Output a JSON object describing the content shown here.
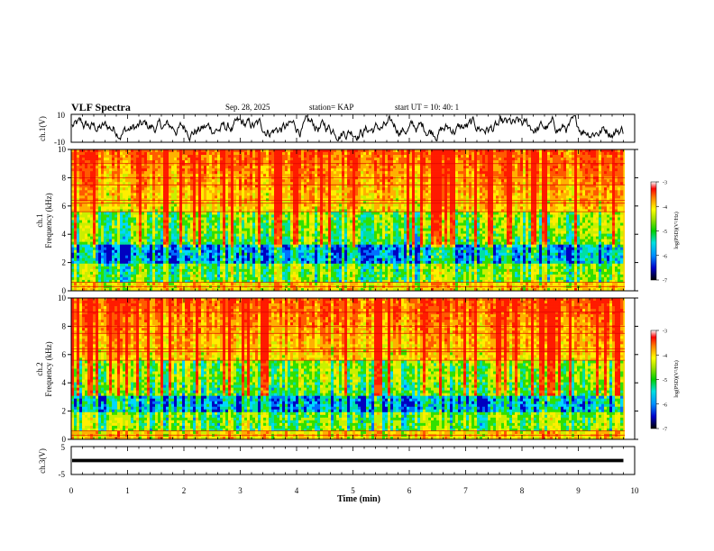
{
  "header": {
    "title": "VLF Spectra",
    "date": "Sep. 28, 2025",
    "station": "station= KAP",
    "start_ut": "start  UT =   10: 40: 1"
  },
  "chart_data": [
    {
      "type": "line",
      "name": "ch1-waveform",
      "ylabel": "ch.1(V)",
      "ylim": [
        -10,
        10
      ],
      "yticks": [
        "10",
        "-10"
      ],
      "x_range_min": [
        0,
        9.8
      ],
      "description_values": "noisy waveform fluctuating roughly between -9 and +9 V"
    },
    {
      "type": "heatmap",
      "name": "ch1-spectrogram",
      "ylabel": "ch.1\nFrequency (kHz)",
      "ylim": [
        0,
        10
      ],
      "yticks": [
        "0",
        "2",
        "4",
        "6",
        "8",
        "10"
      ],
      "colorbar": {
        "label": "log(PSD)(V²/Hz)",
        "range": [
          -7,
          -3
        ],
        "ticks": [
          "-3",
          "-4",
          "-5",
          "-6",
          "-7"
        ]
      }
    },
    {
      "type": "heatmap",
      "name": "ch2-spectrogram",
      "ylabel": "ch.2\nFrequency (kHz)",
      "ylim": [
        0,
        10
      ],
      "yticks": [
        "0",
        "2",
        "4",
        "6",
        "8",
        "10"
      ],
      "colorbar": {
        "label": "log(PSD)(V²/Hz)",
        "range": [
          -7,
          -3
        ],
        "ticks": [
          "-3",
          "-4",
          "-5",
          "-6",
          "-7"
        ]
      }
    },
    {
      "type": "line",
      "name": "ch3-waveform",
      "ylabel": "ch.3(V)",
      "ylim": [
        -5,
        5
      ],
      "yticks": [
        "5",
        "-5"
      ],
      "value_band": [
        -0.6,
        0.6
      ]
    }
  ],
  "xaxis": {
    "label": "Time (min)",
    "range": [
      0,
      10
    ],
    "ticks": [
      "0",
      "1",
      "2",
      "3",
      "4",
      "5",
      "6",
      "7",
      "8",
      "9",
      "10"
    ]
  },
  "labels": {
    "ch1_wave": "ch.1(V)",
    "ch1_spec_a": "ch.1",
    "ch1_spec_b": "Frequency  (kHz)",
    "ch2_spec_a": "ch.2",
    "ch2_spec_b": "Frequency  (kHz)",
    "ch3_wave": "ch.3(V)",
    "cb_label": "log(PSD)(V²/Hz)"
  }
}
